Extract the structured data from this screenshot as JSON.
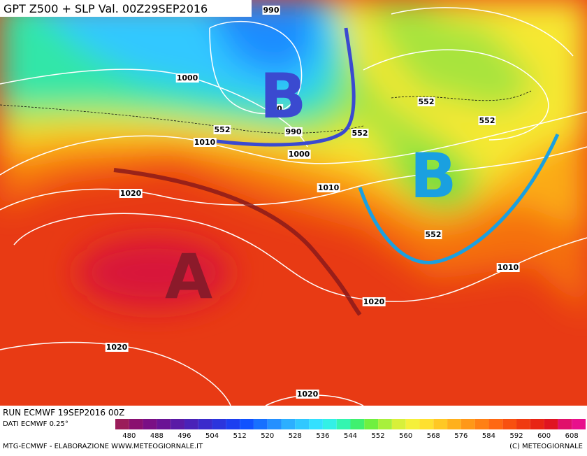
{
  "header": {
    "title": "GPT Z500 + SLP Val. 00Z29SEP2016"
  },
  "map": {
    "isobar_labels": [
      "990",
      "1000",
      "0",
      "552",
      "552",
      "552",
      "552",
      "990",
      "1010",
      "1000",
      "1010",
      "1020",
      "1020",
      "1010",
      "1020",
      "1020",
      "552"
    ],
    "pressure_systems": [
      "B",
      "B",
      "A"
    ]
  },
  "footer": {
    "run": "RUN ECMWF 19SEP2016 00Z",
    "data_source": "DATI ECMWF 0.25°",
    "credit": "MTG-ECMWF - ELABORAZIONE WWW.METEOGIORNALE.IT",
    "copyright": "(C) METEOGIORNALE"
  },
  "colorbar": {
    "ticks": [
      480,
      488,
      496,
      504,
      512,
      520,
      528,
      536,
      544,
      552,
      560,
      568,
      576,
      584,
      592,
      600,
      608
    ],
    "colors": [
      "#9b1d5a",
      "#8a1070",
      "#7a0f85",
      "#6a1395",
      "#5a1aa6",
      "#4a22b8",
      "#3a2bcb",
      "#2b35dd",
      "#1d3ff0",
      "#1052ff",
      "#1770ff",
      "#2490ff",
      "#2cafff",
      "#30c8ff",
      "#33e0ff",
      "#33f0e6",
      "#33f5b0",
      "#40f070",
      "#70f040",
      "#a8f03c",
      "#d8f03a",
      "#f5f03a",
      "#ffe030",
      "#ffc824",
      "#ffb01c",
      "#ff9818",
      "#ff8014",
      "#ff6812",
      "#f85010",
      "#f03a10",
      "#e82414",
      "#e01420",
      "#e0106a",
      "#e8108c"
    ]
  }
}
